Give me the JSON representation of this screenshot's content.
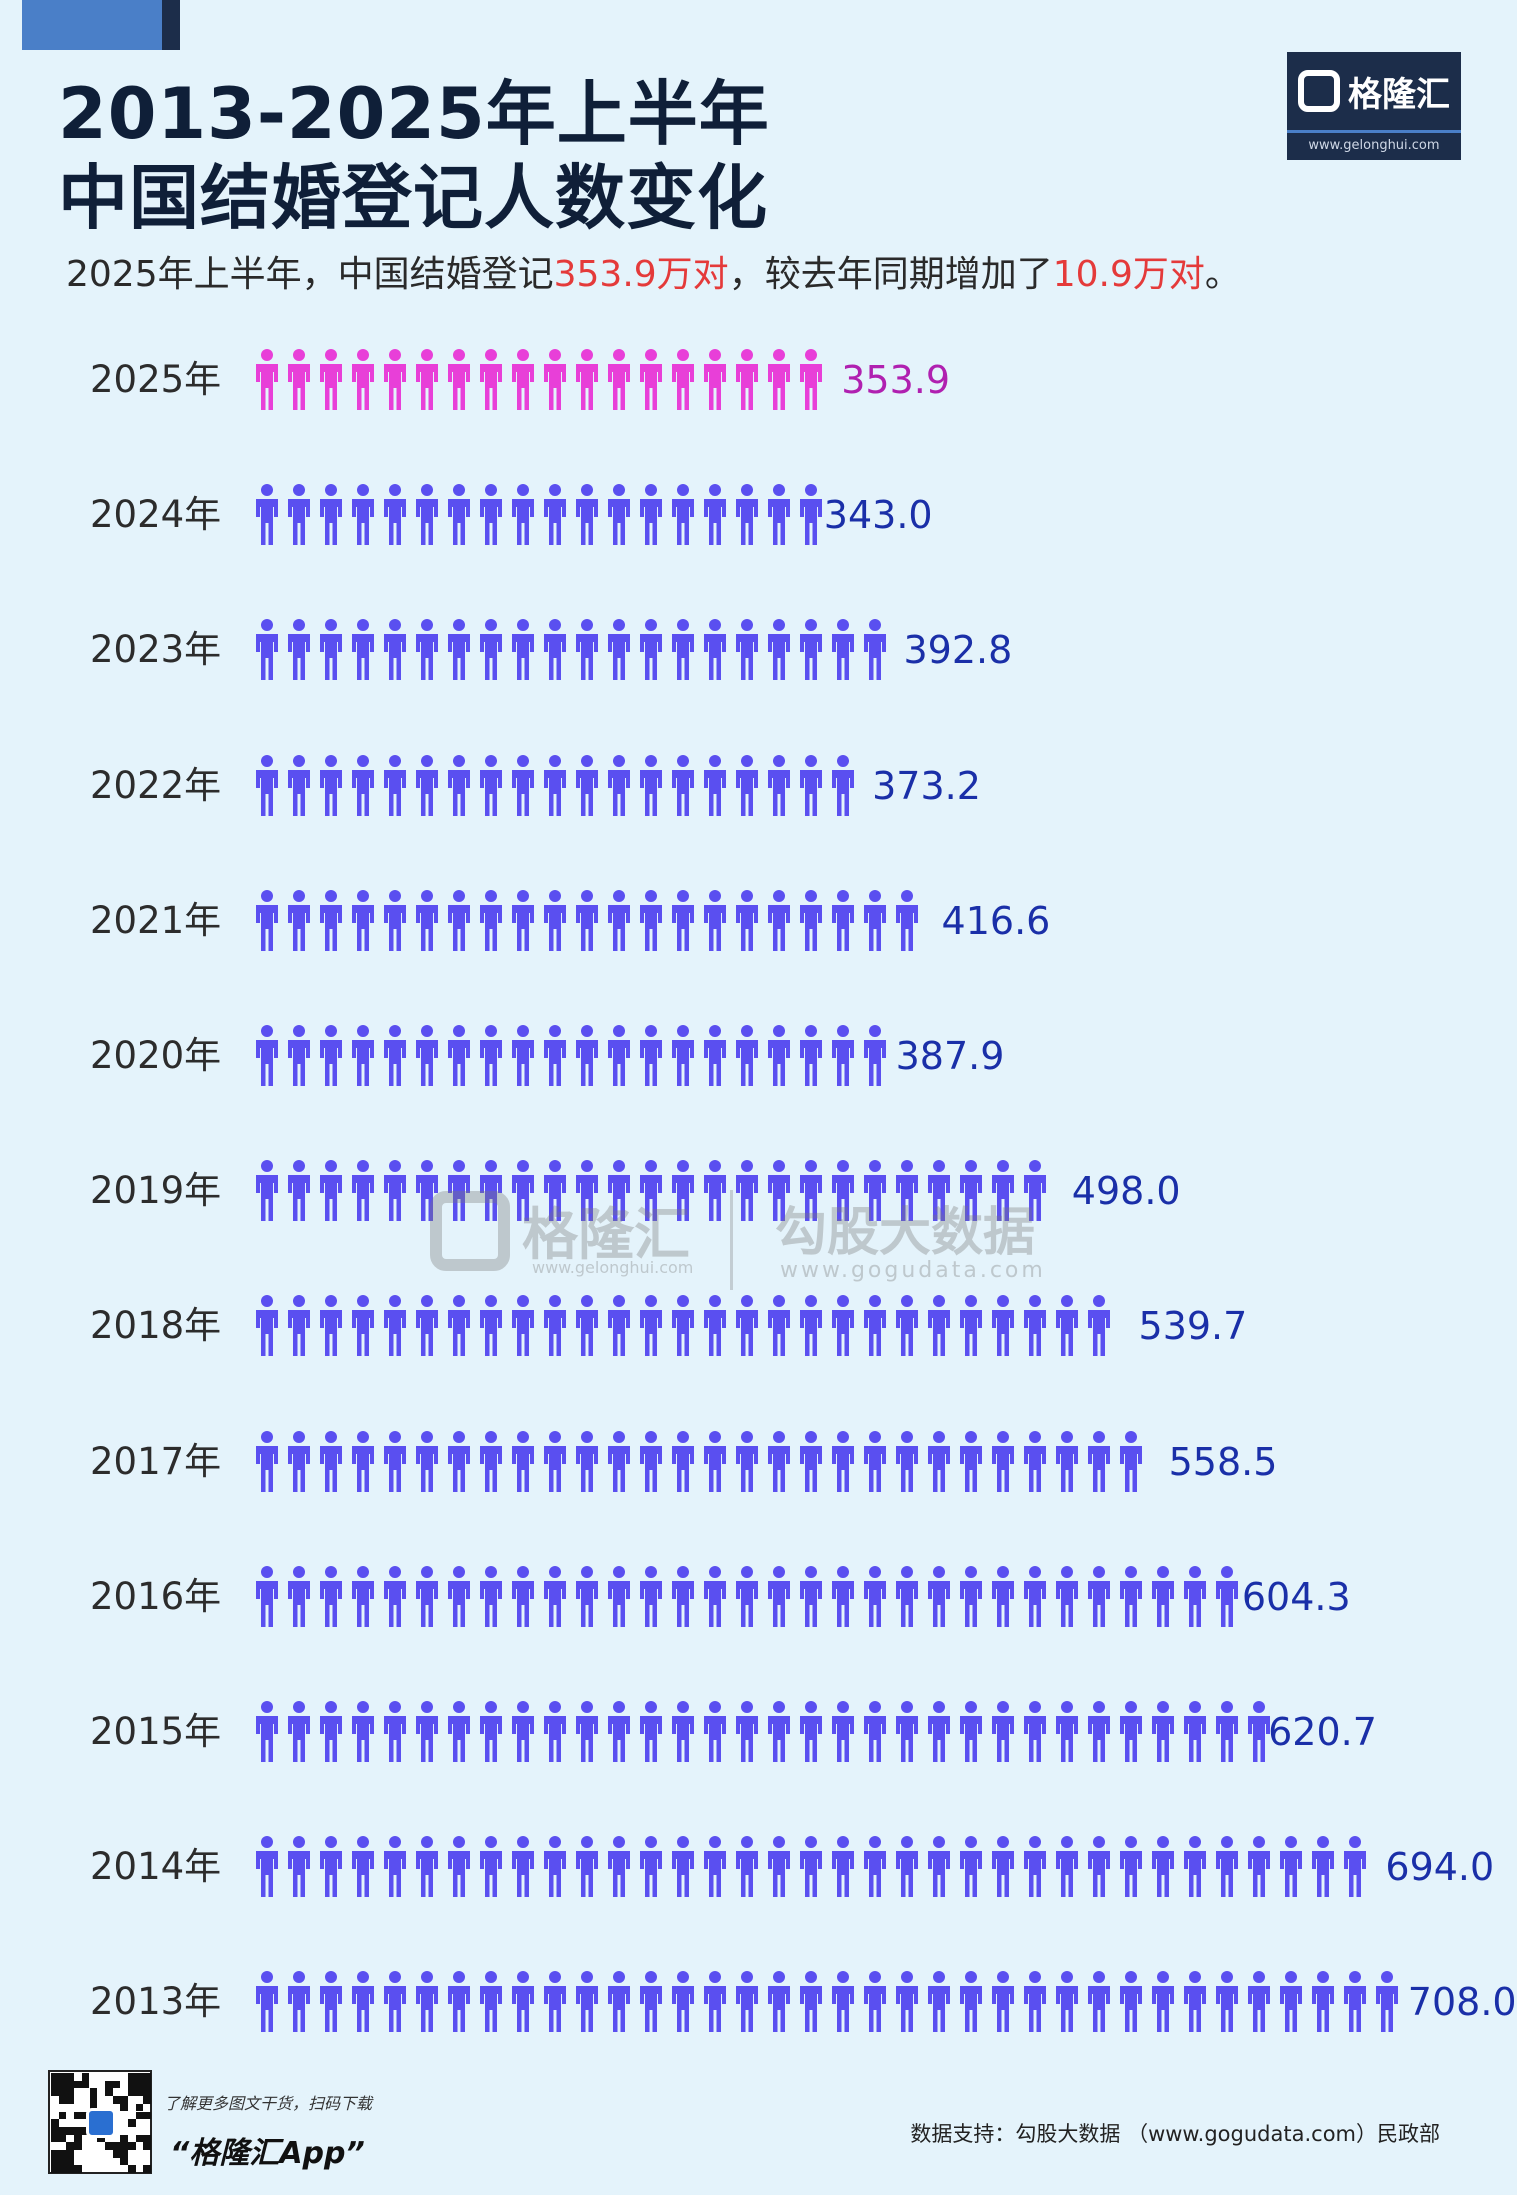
{
  "header": {
    "title_line1": "2013-2025年上半年",
    "title_line2": "中国结婚登记人数变化",
    "subtitle_pre": "2025年上半年，中国结婚登记",
    "subtitle_hl1": "353.9万对",
    "subtitle_mid": "，较去年同期增加了",
    "subtitle_hl2": "10.9万对",
    "subtitle_post": "。"
  },
  "logo": {
    "name": "格隆汇",
    "url": "www.gelonghui.com"
  },
  "watermark": {
    "left_name": "格隆汇",
    "left_url": "www.gelonghui.com",
    "right_name": "勾股大数据",
    "right_url": "www.gogudata.com"
  },
  "chart_data": {
    "type": "bar",
    "categories": [
      "2025年",
      "2024年",
      "2023年",
      "2022年",
      "2021年",
      "2020年",
      "2019年",
      "2018年",
      "2017年",
      "2016年",
      "2015年",
      "2014年",
      "2013年"
    ],
    "values": [
      353.9,
      343.0,
      392.8,
      373.2,
      416.6,
      387.9,
      498.0,
      539.7,
      558.5,
      604.3,
      620.7,
      694.0,
      708.0
    ],
    "value_labels": [
      "353.9",
      "343.0",
      "392.8",
      "373.2",
      "416.6",
      "387.9",
      "498.0",
      "539.7",
      "558.5",
      "604.3",
      "620.7",
      "694.0",
      "708.0"
    ],
    "highlight_index": 0,
    "orientation": "horizontal",
    "mark": "person-icons",
    "colors": {
      "highlight": "#e83fd8",
      "highlight_label": "#b020b0",
      "default": "#5a4ff0",
      "default_label": "#1a2fa8"
    }
  },
  "footer": {
    "tip": "了解更多图文干货，扫码下载",
    "app": "“格隆汇App”",
    "source": "数据支持：勾股大数据 （www.gogudata.com）民政部"
  }
}
